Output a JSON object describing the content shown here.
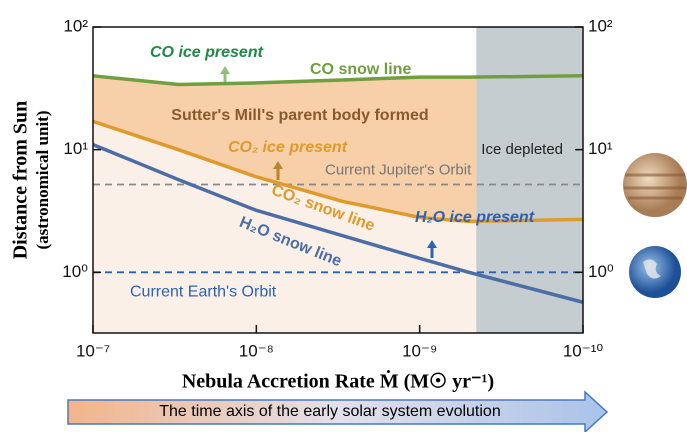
{
  "chart_data": {
    "type": "line",
    "ylabel_lines": [
      "Distance from Sun",
      "(astronomical unit)"
    ],
    "xlabel": "Nebula Accretion Rate Ṁ (M☉ yr⁻¹)",
    "time_arrow": "The time axis of the early solar system evolution",
    "x_log": true,
    "y_log": true,
    "xlim": [
      1e-07,
      1e-10
    ],
    "ylim": [
      0.32,
      100
    ],
    "xticks": [
      {
        "value": 1e-07,
        "label": "10⁻⁷"
      },
      {
        "value": 1e-08,
        "label": "10⁻⁸"
      },
      {
        "value": 1e-09,
        "label": "10⁻⁹"
      },
      {
        "value": 1e-10,
        "label": "10⁻¹⁰"
      }
    ],
    "yticks": [
      {
        "value": 1,
        "label": "10⁰"
      },
      {
        "value": 10,
        "label": "10¹"
      },
      {
        "value": 100,
        "label": "10²"
      }
    ],
    "x": [
      1e-07,
      3e-08,
      1e-08,
      3e-09,
      1e-09,
      5e-10,
      1e-10
    ],
    "series": [
      {
        "name": "CO snow line",
        "color": "#6f9f3f",
        "values": [
          40,
          34,
          35,
          37,
          39,
          39,
          40
        ]
      },
      {
        "name": "CO₂ snow line",
        "color": "#e09a2c",
        "values": [
          17,
          10,
          6,
          3.8,
          2.8,
          2.6,
          2.7
        ]
      },
      {
        "name": "H₂O snow line",
        "color": "#4b6ea6",
        "values": [
          11,
          5.7,
          3.2,
          2,
          1.3,
          1,
          0.57
        ]
      }
    ],
    "reference_lines": [
      {
        "name": "Current Jupiter's Orbit",
        "value": 5.2,
        "color": "#888888"
      },
      {
        "name": "Current Earth's Orbit",
        "value": 1,
        "color": "#2d62b0"
      }
    ],
    "shaded_region": {
      "label": "Ice depleted",
      "xlim": [
        4.5e-10,
        1e-10
      ],
      "color": "#c5cdd1"
    },
    "annotations": [
      "CO ice present",
      "Sutter's Mill's parent body formed",
      "CO₂ ice present",
      "H₂O ice present"
    ]
  }
}
